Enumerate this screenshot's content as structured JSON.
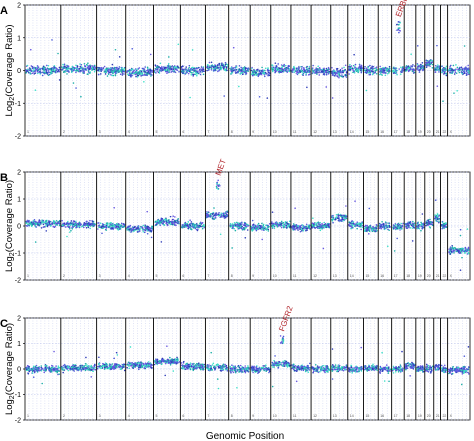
{
  "x_title": "Genomic Position",
  "colors": {
    "points": [
      "#2f3cb8",
      "#4a58d8",
      "#1fb0a8",
      "#3de0c8",
      "#6a5ae0"
    ],
    "boundary": "#000000",
    "grid": "#aab4e6",
    "gene": "#b0242a"
  },
  "chart_data": [
    {
      "type": "scatter",
      "panel_label": "A",
      "ylabel": "Log2(Coverage Ratio)",
      "ylim": [
        -2,
        2
      ],
      "yticks": [
        -2,
        -1,
        0,
        1,
        2
      ],
      "grid": true,
      "chromosomes": [
        "1",
        "2",
        "3",
        "4",
        "5",
        "6",
        "7",
        "8",
        "9",
        "10",
        "11",
        "12",
        "13",
        "14",
        "15",
        "16",
        "17",
        "18",
        "19",
        "20",
        "21",
        "22",
        "X"
      ],
      "segments": [
        {
          "chrom": "1",
          "log2": 0.0
        },
        {
          "chrom": "2",
          "log2": 0.05
        },
        {
          "chrom": "3",
          "log2": 0.0
        },
        {
          "chrom": "4",
          "log2": -0.05
        },
        {
          "chrom": "5",
          "log2": 0.05
        },
        {
          "chrom": "6",
          "log2": 0.0
        },
        {
          "chrom": "7",
          "log2": 0.1
        },
        {
          "chrom": "8",
          "log2": 0.0
        },
        {
          "chrom": "9",
          "log2": -0.05
        },
        {
          "chrom": "10",
          "log2": 0.05
        },
        {
          "chrom": "11",
          "log2": 0.0
        },
        {
          "chrom": "12",
          "log2": 0.0
        },
        {
          "chrom": "13",
          "log2": -0.05
        },
        {
          "chrom": "14",
          "log2": 0.05
        },
        {
          "chrom": "15",
          "log2": 0.0
        },
        {
          "chrom": "16",
          "log2": 0.0
        },
        {
          "chrom": "17",
          "log2": 0.0
        },
        {
          "chrom": "18",
          "log2": 0.05
        },
        {
          "chrom": "19",
          "log2": 0.1
        },
        {
          "chrom": "20",
          "log2": 0.2
        },
        {
          "chrom": "21",
          "log2": 0.05
        },
        {
          "chrom": "22",
          "log2": 0.0
        },
        {
          "chrom": "X",
          "log2": 0.0
        }
      ],
      "annotations": [
        {
          "text": "ERBB2",
          "chrom": "17",
          "log2": 1.5
        }
      ]
    },
    {
      "type": "scatter",
      "panel_label": "B",
      "ylabel": "Log2(Coverage Ratio)",
      "ylim": [
        -2,
        2
      ],
      "yticks": [
        -2,
        -1,
        0,
        1,
        2
      ],
      "grid": true,
      "chromosomes": [
        "1",
        "2",
        "3",
        "4",
        "5",
        "6",
        "7",
        "8",
        "9",
        "10",
        "11",
        "12",
        "13",
        "14",
        "15",
        "16",
        "17",
        "18",
        "19",
        "20",
        "21",
        "22",
        "X"
      ],
      "segments": [
        {
          "chrom": "1",
          "log2": 0.1
        },
        {
          "chrom": "2",
          "log2": 0.05
        },
        {
          "chrom": "3",
          "log2": 0.0
        },
        {
          "chrom": "4",
          "log2": -0.1
        },
        {
          "chrom": "5",
          "log2": 0.15
        },
        {
          "chrom": "6",
          "log2": 0.0
        },
        {
          "chrom": "7",
          "log2": 0.4
        },
        {
          "chrom": "8",
          "log2": 0.0
        },
        {
          "chrom": "9",
          "log2": -0.05
        },
        {
          "chrom": "10",
          "log2": 0.05
        },
        {
          "chrom": "11",
          "log2": -0.05
        },
        {
          "chrom": "12",
          "log2": 0.0
        },
        {
          "chrom": "13",
          "log2": 0.3
        },
        {
          "chrom": "14",
          "log2": 0.05
        },
        {
          "chrom": "15",
          "log2": -0.1
        },
        {
          "chrom": "16",
          "log2": 0.0
        },
        {
          "chrom": "17",
          "log2": -0.05
        },
        {
          "chrom": "18",
          "log2": 0.05
        },
        {
          "chrom": "19",
          "log2": 0.0
        },
        {
          "chrom": "20",
          "log2": 0.1
        },
        {
          "chrom": "21",
          "log2": 0.3
        },
        {
          "chrom": "22",
          "log2": 0.0
        },
        {
          "chrom": "X",
          "log2": -0.9
        }
      ],
      "annotations": [
        {
          "text": "MET",
          "chrom": "7",
          "log2": 1.7
        }
      ]
    },
    {
      "type": "scatter",
      "panel_label": "C",
      "ylabel": "Log2(Coverage Ratio)",
      "ylim": [
        -2,
        2
      ],
      "yticks": [
        -2,
        -1,
        0,
        1,
        2
      ],
      "grid": true,
      "chromosomes": [
        "1",
        "2",
        "3",
        "4",
        "5",
        "6",
        "7",
        "8",
        "9",
        "10",
        "11",
        "12",
        "13",
        "14",
        "15",
        "16",
        "17",
        "18",
        "19",
        "20",
        "21",
        "22",
        "X"
      ],
      "segments": [
        {
          "chrom": "1",
          "log2": 0.0
        },
        {
          "chrom": "2",
          "log2": 0.05
        },
        {
          "chrom": "3",
          "log2": 0.1
        },
        {
          "chrom": "4",
          "log2": 0.15
        },
        {
          "chrom": "5",
          "log2": 0.3
        },
        {
          "chrom": "6",
          "log2": 0.1
        },
        {
          "chrom": "7",
          "log2": 0.05
        },
        {
          "chrom": "8",
          "log2": 0.0
        },
        {
          "chrom": "9",
          "log2": 0.0
        },
        {
          "chrom": "10",
          "log2": 0.2
        },
        {
          "chrom": "11",
          "log2": 0.05
        },
        {
          "chrom": "12",
          "log2": 0.0
        },
        {
          "chrom": "13",
          "log2": 0.05
        },
        {
          "chrom": "14",
          "log2": 0.0
        },
        {
          "chrom": "15",
          "log2": 0.05
        },
        {
          "chrom": "16",
          "log2": 0.0
        },
        {
          "chrom": "17",
          "log2": 0.0
        },
        {
          "chrom": "18",
          "log2": 0.1
        },
        {
          "chrom": "19",
          "log2": 0.0
        },
        {
          "chrom": "20",
          "log2": 0.0
        },
        {
          "chrom": "21",
          "log2": 0.05
        },
        {
          "chrom": "22",
          "log2": 0.0
        },
        {
          "chrom": "X",
          "log2": -0.05
        }
      ],
      "annotations": [
        {
          "text": "FGFR2",
          "chrom": "10",
          "log2": 1.3
        }
      ]
    }
  ]
}
